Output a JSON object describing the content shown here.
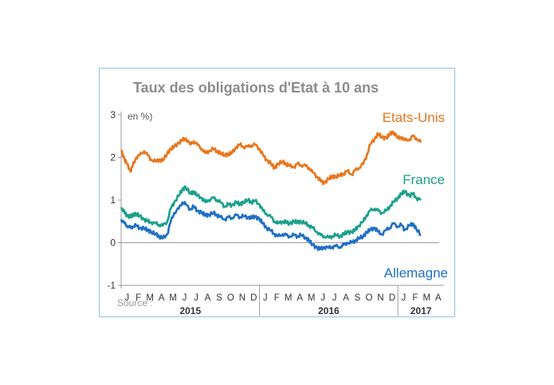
{
  "chart_data": {
    "type": "line",
    "title": "Taux des obligations d'Etat à 10 ans",
    "ylabel": "en %)",
    "source": "Source :",
    "ylim": [
      -1,
      3
    ],
    "yticks": [
      "3",
      "2",
      "1",
      "0",
      "-1"
    ],
    "ytick_values": [
      3,
      2,
      1,
      0,
      -1
    ],
    "months": [
      "J",
      "F",
      "M",
      "A",
      "M",
      "J",
      "J",
      "A",
      "S",
      "O",
      "N",
      "D",
      "J",
      "F",
      "M",
      "A",
      "M",
      "J",
      "J",
      "A",
      "S",
      "O",
      "N",
      "D",
      "J",
      "F",
      "M",
      "A"
    ],
    "years": [
      {
        "label": "2015",
        "start": 0,
        "end": 12
      },
      {
        "label": "2016",
        "start": 12,
        "end": 24
      },
      {
        "label": "2017",
        "start": 24,
        "end": 28
      }
    ],
    "x_unit": "month index from Jan 2015",
    "series": [
      {
        "name": "Etats-Unis",
        "color": "#e8761c",
        "points": [
          [
            0,
            2.17
          ],
          [
            0.3,
            1.95
          ],
          [
            0.5,
            1.85
          ],
          [
            0.8,
            1.68
          ],
          [
            1.0,
            1.8
          ],
          [
            1.3,
            2.0
          ],
          [
            1.6,
            2.05
          ],
          [
            2.0,
            2.15
          ],
          [
            2.3,
            2.05
          ],
          [
            2.6,
            1.95
          ],
          [
            3.0,
            1.9
          ],
          [
            3.3,
            1.95
          ],
          [
            3.6,
            1.92
          ],
          [
            4.0,
            2.1
          ],
          [
            4.3,
            2.2
          ],
          [
            4.6,
            2.25
          ],
          [
            5.0,
            2.35
          ],
          [
            5.3,
            2.4
          ],
          [
            5.6,
            2.45
          ],
          [
            6.0,
            2.3
          ],
          [
            6.3,
            2.38
          ],
          [
            6.6,
            2.3
          ],
          [
            7.0,
            2.2
          ],
          [
            7.3,
            2.1
          ],
          [
            7.6,
            2.15
          ],
          [
            8.0,
            2.2
          ],
          [
            8.3,
            2.15
          ],
          [
            8.6,
            2.1
          ],
          [
            9.0,
            2.05
          ],
          [
            9.3,
            2.08
          ],
          [
            9.6,
            2.1
          ],
          [
            10.0,
            2.25
          ],
          [
            10.3,
            2.3
          ],
          [
            10.6,
            2.25
          ],
          [
            11.0,
            2.25
          ],
          [
            11.3,
            2.28
          ],
          [
            11.6,
            2.3
          ],
          [
            12.0,
            2.2
          ],
          [
            12.3,
            2.05
          ],
          [
            12.6,
            1.95
          ],
          [
            13.0,
            1.85
          ],
          [
            13.3,
            1.75
          ],
          [
            13.6,
            1.85
          ],
          [
            14.0,
            1.9
          ],
          [
            14.3,
            1.85
          ],
          [
            14.6,
            1.8
          ],
          [
            15.0,
            1.78
          ],
          [
            15.3,
            1.85
          ],
          [
            15.6,
            1.82
          ],
          [
            16.0,
            1.8
          ],
          [
            16.3,
            1.75
          ],
          [
            16.6,
            1.65
          ],
          [
            17.0,
            1.55
          ],
          [
            17.3,
            1.45
          ],
          [
            17.6,
            1.4
          ],
          [
            18.0,
            1.5
          ],
          [
            18.3,
            1.55
          ],
          [
            18.6,
            1.55
          ],
          [
            19.0,
            1.58
          ],
          [
            19.3,
            1.62
          ],
          [
            19.6,
            1.68
          ],
          [
            20.0,
            1.6
          ],
          [
            20.3,
            1.7
          ],
          [
            20.6,
            1.75
          ],
          [
            21.0,
            1.85
          ],
          [
            21.3,
            2.05
          ],
          [
            21.6,
            2.3
          ],
          [
            22.0,
            2.45
          ],
          [
            22.3,
            2.55
          ],
          [
            22.6,
            2.48
          ],
          [
            23.0,
            2.45
          ],
          [
            23.3,
            2.55
          ],
          [
            23.6,
            2.6
          ],
          [
            24.0,
            2.45
          ],
          [
            24.3,
            2.48
          ],
          [
            24.6,
            2.4
          ],
          [
            25.0,
            2.42
          ],
          [
            25.3,
            2.5
          ],
          [
            25.6,
            2.45
          ],
          [
            26.0,
            2.35
          ]
        ]
      },
      {
        "name": "France",
        "color": "#1aa08b",
        "points": [
          [
            0,
            0.83
          ],
          [
            0.3,
            0.7
          ],
          [
            0.5,
            0.65
          ],
          [
            0.8,
            0.6
          ],
          [
            1.0,
            0.65
          ],
          [
            1.3,
            0.68
          ],
          [
            1.6,
            0.62
          ],
          [
            2.0,
            0.55
          ],
          [
            2.3,
            0.5
          ],
          [
            2.6,
            0.48
          ],
          [
            3.0,
            0.45
          ],
          [
            3.3,
            0.42
          ],
          [
            3.6,
            0.4
          ],
          [
            4.0,
            0.5
          ],
          [
            4.3,
            0.8
          ],
          [
            4.6,
            0.95
          ],
          [
            5.0,
            1.1
          ],
          [
            5.3,
            1.25
          ],
          [
            5.6,
            1.3
          ],
          [
            6.0,
            1.15
          ],
          [
            6.3,
            1.2
          ],
          [
            6.6,
            1.1
          ],
          [
            7.0,
            1.05
          ],
          [
            7.3,
            0.95
          ],
          [
            7.6,
            1.0
          ],
          [
            8.0,
            1.05
          ],
          [
            8.3,
            1.0
          ],
          [
            8.6,
            0.95
          ],
          [
            9.0,
            0.85
          ],
          [
            9.3,
            0.9
          ],
          [
            9.6,
            0.88
          ],
          [
            10.0,
            0.95
          ],
          [
            10.3,
            0.9
          ],
          [
            10.6,
            0.95
          ],
          [
            11.0,
            1.0
          ],
          [
            11.3,
            0.95
          ],
          [
            11.6,
            0.98
          ],
          [
            12.0,
            0.9
          ],
          [
            12.3,
            0.75
          ],
          [
            12.6,
            0.68
          ],
          [
            13.0,
            0.6
          ],
          [
            13.3,
            0.5
          ],
          [
            13.6,
            0.45
          ],
          [
            14.0,
            0.5
          ],
          [
            14.3,
            0.48
          ],
          [
            14.6,
            0.45
          ],
          [
            15.0,
            0.5
          ],
          [
            15.3,
            0.48
          ],
          [
            15.6,
            0.5
          ],
          [
            16.0,
            0.45
          ],
          [
            16.3,
            0.4
          ],
          [
            16.6,
            0.35
          ],
          [
            17.0,
            0.25
          ],
          [
            17.3,
            0.18
          ],
          [
            17.6,
            0.15
          ],
          [
            18.0,
            0.12
          ],
          [
            18.3,
            0.15
          ],
          [
            18.6,
            0.18
          ],
          [
            19.0,
            0.15
          ],
          [
            19.3,
            0.2
          ],
          [
            19.6,
            0.25
          ],
          [
            20.0,
            0.25
          ],
          [
            20.3,
            0.3
          ],
          [
            20.6,
            0.4
          ],
          [
            21.0,
            0.5
          ],
          [
            21.3,
            0.65
          ],
          [
            21.6,
            0.75
          ],
          [
            22.0,
            0.8
          ],
          [
            22.3,
            0.75
          ],
          [
            22.6,
            0.7
          ],
          [
            23.0,
            0.75
          ],
          [
            23.3,
            0.85
          ],
          [
            23.6,
            0.95
          ],
          [
            24.0,
            1.05
          ],
          [
            24.3,
            1.15
          ],
          [
            24.6,
            1.2
          ],
          [
            25.0,
            1.1
          ],
          [
            25.3,
            1.15
          ],
          [
            25.6,
            1.05
          ],
          [
            26.0,
            1.0
          ]
        ]
      },
      {
        "name": "Allemagne",
        "color": "#1f6fc5",
        "points": [
          [
            0,
            0.55
          ],
          [
            0.3,
            0.45
          ],
          [
            0.5,
            0.4
          ],
          [
            0.8,
            0.35
          ],
          [
            1.0,
            0.38
          ],
          [
            1.3,
            0.4
          ],
          [
            1.6,
            0.35
          ],
          [
            2.0,
            0.33
          ],
          [
            2.3,
            0.3
          ],
          [
            2.6,
            0.25
          ],
          [
            3.0,
            0.2
          ],
          [
            3.3,
            0.15
          ],
          [
            3.6,
            0.1
          ],
          [
            4.0,
            0.2
          ],
          [
            4.3,
            0.5
          ],
          [
            4.6,
            0.7
          ],
          [
            5.0,
            0.8
          ],
          [
            5.3,
            0.95
          ],
          [
            5.6,
            0.9
          ],
          [
            6.0,
            0.78
          ],
          [
            6.3,
            0.85
          ],
          [
            6.6,
            0.75
          ],
          [
            7.0,
            0.7
          ],
          [
            7.3,
            0.65
          ],
          [
            7.6,
            0.65
          ],
          [
            8.0,
            0.7
          ],
          [
            8.3,
            0.65
          ],
          [
            8.6,
            0.6
          ],
          [
            9.0,
            0.55
          ],
          [
            9.3,
            0.6
          ],
          [
            9.6,
            0.58
          ],
          [
            10.0,
            0.65
          ],
          [
            10.3,
            0.6
          ],
          [
            10.6,
            0.62
          ],
          [
            11.0,
            0.6
          ],
          [
            11.3,
            0.58
          ],
          [
            11.6,
            0.62
          ],
          [
            12.0,
            0.55
          ],
          [
            12.3,
            0.45
          ],
          [
            12.6,
            0.35
          ],
          [
            13.0,
            0.28
          ],
          [
            13.3,
            0.2
          ],
          [
            13.6,
            0.15
          ],
          [
            14.0,
            0.2
          ],
          [
            14.3,
            0.18
          ],
          [
            14.6,
            0.15
          ],
          [
            15.0,
            0.18
          ],
          [
            15.3,
            0.15
          ],
          [
            15.6,
            0.18
          ],
          [
            16.0,
            0.12
          ],
          [
            16.3,
            0.05
          ],
          [
            16.6,
            -0.05
          ],
          [
            17.0,
            -0.12
          ],
          [
            17.3,
            -0.15
          ],
          [
            17.6,
            -0.1
          ],
          [
            18.0,
            -0.12
          ],
          [
            18.3,
            -0.1
          ],
          [
            18.6,
            -0.08
          ],
          [
            19.0,
            -0.1
          ],
          [
            19.3,
            -0.05
          ],
          [
            19.6,
            0.0
          ],
          [
            20.0,
            0.0
          ],
          [
            20.3,
            0.05
          ],
          [
            20.6,
            0.1
          ],
          [
            21.0,
            0.15
          ],
          [
            21.3,
            0.25
          ],
          [
            21.6,
            0.3
          ],
          [
            22.0,
            0.35
          ],
          [
            22.3,
            0.25
          ],
          [
            22.6,
            0.2
          ],
          [
            23.0,
            0.3
          ],
          [
            23.3,
            0.35
          ],
          [
            23.6,
            0.45
          ],
          [
            24.0,
            0.38
          ],
          [
            24.3,
            0.42
          ],
          [
            24.6,
            0.3
          ],
          [
            25.0,
            0.4
          ],
          [
            25.3,
            0.45
          ],
          [
            25.6,
            0.32
          ],
          [
            26.0,
            0.18
          ]
        ]
      }
    ]
  }
}
